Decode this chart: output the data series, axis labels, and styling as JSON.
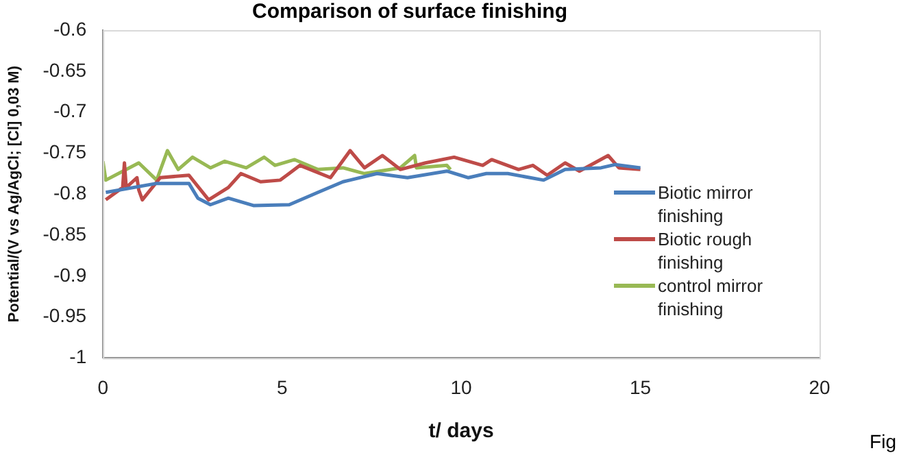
{
  "chart_data": {
    "type": "line",
    "title": "Comparison of surface finishing",
    "xlabel": "t/ days",
    "ylabel": "Potential/(V vs Ag/AgCl; [Cl] 0,03 M)",
    "xlim": [
      0,
      20
    ],
    "xticks": [
      0,
      5,
      10,
      15,
      20
    ],
    "ylim": [
      -1,
      -0.6
    ],
    "yticks": [
      -1,
      -0.95,
      -0.9,
      -0.85,
      -0.8,
      -0.75,
      -0.7,
      -0.65,
      -0.6
    ],
    "grid": false,
    "legend": "right",
    "marker": "none",
    "line_style": "solid",
    "annotations": [
      "Fig"
    ],
    "series": [
      {
        "name": "Biotic mirror finishing",
        "color": "#4a7ebb",
        "x": [
          0.08,
          1.5,
          2.4,
          2.65,
          3.0,
          3.5,
          4.2,
          5.2,
          6.0,
          6.7,
          7.65,
          8.5,
          9.6,
          10.2,
          10.7,
          11.3,
          12.3,
          12.9,
          13.9,
          14.3,
          15
        ],
        "values": [
          -0.798,
          -0.787,
          -0.787,
          -0.805,
          -0.813,
          -0.805,
          -0.814,
          -0.813,
          -0.798,
          -0.785,
          -0.775,
          -0.78,
          -0.772,
          -0.78,
          -0.775,
          -0.775,
          -0.783,
          -0.77,
          -0.768,
          -0.764,
          -0.768
        ]
      },
      {
        "name": "Biotic rough finishing",
        "color": "#be4b48",
        "x": [
          0.08,
          0.55,
          0.6,
          0.65,
          0.95,
          1.0,
          1.1,
          1.6,
          2.4,
          2.95,
          3.5,
          3.85,
          4.4,
          4.95,
          5.5,
          6.35,
          6.9,
          7.3,
          7.8,
          8.3,
          9.0,
          9.8,
          10.6,
          10.85,
          11.6,
          12.0,
          12.4,
          12.9,
          13.3,
          14.1,
          14.4,
          15
        ],
        "values": [
          -0.807,
          -0.792,
          -0.762,
          -0.792,
          -0.78,
          -0.795,
          -0.807,
          -0.78,
          -0.777,
          -0.807,
          -0.792,
          -0.775,
          -0.785,
          -0.783,
          -0.765,
          -0.78,
          -0.747,
          -0.768,
          -0.753,
          -0.77,
          -0.762,
          -0.755,
          -0.765,
          -0.758,
          -0.77,
          -0.765,
          -0.777,
          -0.762,
          -0.772,
          -0.753,
          -0.768,
          -0.77
        ]
      },
      {
        "name": "control mirror finishing",
        "color": "#98b954",
        "x": [
          0.0,
          0.08,
          1.0,
          1.5,
          1.8,
          2.1,
          2.5,
          3.0,
          3.4,
          4.0,
          4.5,
          4.8,
          5.35,
          6.0,
          6.7,
          7.3,
          8.3,
          8.7,
          8.75,
          9.6,
          9.7
        ],
        "values": [
          -0.76,
          -0.783,
          -0.762,
          -0.783,
          -0.747,
          -0.77,
          -0.755,
          -0.768,
          -0.76,
          -0.768,
          -0.755,
          -0.765,
          -0.758,
          -0.77,
          -0.768,
          -0.775,
          -0.768,
          -0.753,
          -0.768,
          -0.765,
          -0.77
        ]
      }
    ]
  }
}
